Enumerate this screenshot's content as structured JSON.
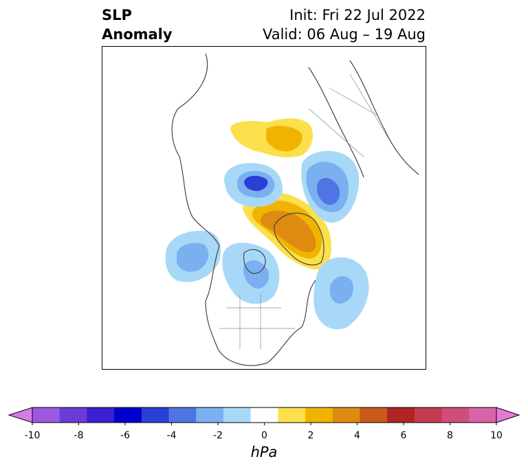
{
  "title": {
    "left_line1": "SLP",
    "left_line2": "Anomaly",
    "init": "Init: Fri 22 Jul 2022",
    "valid": "Valid: 06 Aug – 19 Aug"
  },
  "colorbar": {
    "label": "hPa",
    "ticks": [
      "-10",
      "-8",
      "-6",
      "-4",
      "-2",
      "0",
      "2",
      "4",
      "6",
      "8",
      "10"
    ],
    "colors": [
      "#d67be6",
      "#9b59e0",
      "#6b3bd6",
      "#3b1fd1",
      "#0000cc",
      "#2a3fd6",
      "#4f74e3",
      "#7ab0f0",
      "#a8d8f8",
      "#ffffff",
      "#fbe04b",
      "#f0b400",
      "#df8a10",
      "#c85a1a",
      "#b02424",
      "#c23b50",
      "#cf4e78",
      "#d963a8",
      "#e679d6"
    ]
  },
  "map": {
    "projection": "north-polar-stereographic",
    "field": "sea-level-pressure-anomaly"
  }
}
